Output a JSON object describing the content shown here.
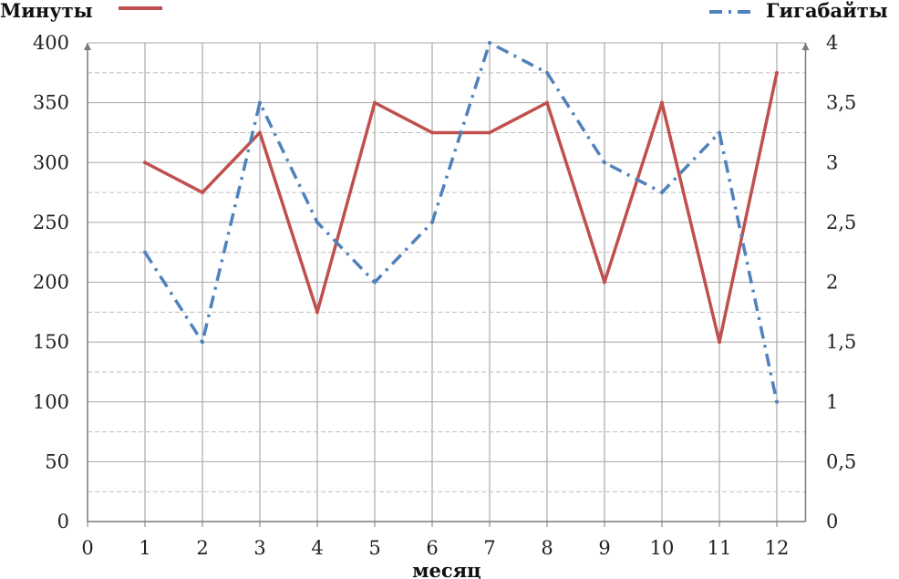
{
  "chart_data": {
    "type": "line",
    "xlabel": "месяц",
    "x_ticks": [
      "0",
      "1",
      "2",
      "3",
      "4",
      "5",
      "6",
      "7",
      "8",
      "9",
      "10",
      "11",
      "12"
    ],
    "xlim": [
      0,
      12.5
    ],
    "x": [
      1,
      2,
      3,
      4,
      5,
      6,
      7,
      8,
      9,
      10,
      11,
      12
    ],
    "y_left": {
      "ylim": [
        0,
        400
      ],
      "ticks": [
        "0",
        "50",
        "100",
        "150",
        "200",
        "250",
        "300",
        "350",
        "400"
      ]
    },
    "y_right": {
      "ylim": [
        0,
        4
      ],
      "ticks": [
        "0",
        "0,5",
        "1",
        "1,5",
        "2",
        "2,5",
        "3",
        "3,5",
        "4"
      ]
    },
    "grid": true,
    "legend_position": "top",
    "series": [
      {
        "name": "Минуты",
        "axis": "left",
        "style": "solid",
        "color": "#c0504d",
        "values": [
          300,
          275,
          325,
          175,
          350,
          325,
          325,
          350,
          200,
          350,
          150,
          375
        ]
      },
      {
        "name": "Гигабайты",
        "axis": "right",
        "style": "dash-dot",
        "color": "#4f81bd",
        "values": [
          2.25,
          1.5,
          3.5,
          2.5,
          2,
          2.5,
          4,
          3.75,
          3,
          2.75,
          3.25,
          1
        ]
      }
    ]
  }
}
